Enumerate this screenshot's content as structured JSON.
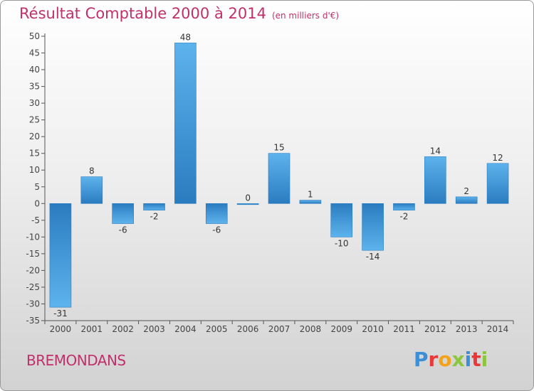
{
  "header": {
    "title": "Résultat Comptable 2000 à 2014",
    "unit": "(en milliers d'€)"
  },
  "footer": {
    "commune": "BREMONDANS",
    "logo_letters": [
      "P",
      "r",
      "o",
      "x",
      "i",
      "t",
      "i"
    ],
    "logo_colors": [
      "#3a8fd6",
      "#e8383a",
      "#f5a21b",
      "#8cc63f",
      "#3a8fd6",
      "#e8383a",
      "#8cc63f"
    ]
  },
  "chart_data": {
    "type": "bar",
    "title": "Résultat Comptable 2000 à 2014",
    "categories": [
      "2000",
      "2001",
      "2002",
      "2003",
      "2004",
      "2005",
      "2006",
      "2007",
      "2008",
      "2009",
      "2010",
      "2011",
      "2012",
      "2013",
      "2014"
    ],
    "values": [
      -31,
      8,
      -6,
      -2,
      48,
      -6,
      0,
      15,
      1,
      -10,
      -14,
      -2,
      14,
      2,
      12
    ],
    "labels": [
      "-31",
      "8",
      "-6",
      "-2",
      "48",
      "-6",
      "0",
      "15",
      "1",
      "-10",
      "-14",
      "-2",
      "14",
      "2",
      "12"
    ],
    "ylim": [
      -35,
      50
    ],
    "yticks": [
      50,
      45,
      40,
      35,
      30,
      25,
      20,
      15,
      10,
      5,
      0,
      -5,
      -10,
      -15,
      -20,
      -25,
      -30,
      -35
    ],
    "bar_color": "#3d9be0",
    "bar_color_light": "#5db3ec",
    "bar_color_dark": "#2a7cc0",
    "title_color": "#c0306a"
  }
}
